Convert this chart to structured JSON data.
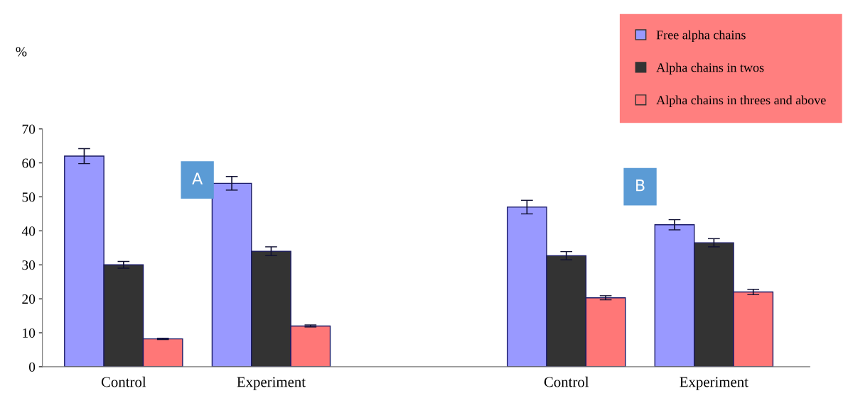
{
  "chart_data": {
    "type": "bar",
    "ylabel": "%",
    "categories": [
      "Control",
      "Experiment",
      null,
      "Control",
      "Experiment"
    ],
    "series": [
      {
        "name": "Free alpha chains",
        "color": "#9999ff",
        "values": [
          62,
          54,
          null,
          47,
          41.8
        ],
        "errors": [
          2.2,
          2,
          null,
          2,
          1.5
        ]
      },
      {
        "name": "Alpha chains in twos",
        "color": "#333333",
        "values": [
          30,
          34,
          null,
          32.7,
          36.5
        ],
        "errors": [
          1,
          1.3,
          null,
          1.2,
          1.2
        ]
      },
      {
        "name": "Alpha chains in threes and above",
        "color": "#ff7777",
        "values": [
          8.2,
          12,
          null,
          20.3,
          22
        ],
        "errors": [
          0.2,
          0.3,
          null,
          0.6,
          0.8
        ]
      }
    ],
    "annotations": [
      "A",
      "B"
    ],
    "ylim": [
      0,
      70
    ],
    "yticks": [
      0,
      10,
      20,
      30,
      40,
      50,
      60,
      70
    ],
    "grid": false,
    "legend": "top right"
  }
}
